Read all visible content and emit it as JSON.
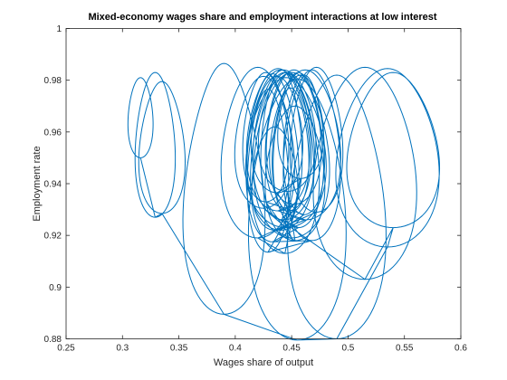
{
  "chart_data": {
    "type": "line",
    "title": "Mixed-economy wages share and employment interactions at low interest",
    "xlabel": "Wages share of output",
    "ylabel": "Employment rate",
    "xlim": [
      0.25,
      0.6
    ],
    "ylim": [
      0.88,
      1.0
    ],
    "xticks": [
      "0.25",
      "0.3",
      "0.35",
      "0.4",
      "0.45",
      "0.5",
      "0.55",
      "0.6"
    ],
    "yticks": [
      "0.88",
      "0.9",
      "0.92",
      "0.94",
      "0.96",
      "0.98",
      "1"
    ],
    "grid": false,
    "line_color": "#0072BD",
    "series": [
      {
        "orbits": [
          {
            "cx": 0.316,
            "cy": 0.9655,
            "w": 0.022,
            "h": 0.031,
            "d": 0.17
          },
          {
            "cx": 0.329,
            "cy": 0.955,
            "w": 0.035,
            "h": 0.056,
            "d": 0.2
          },
          {
            "cx": 0.335,
            "cy": 0.954,
            "w": 0.04,
            "h": 0.051,
            "d": 0.25
          },
          {
            "cx": 0.39,
            "cy": 0.938,
            "w": 0.07,
            "h": 0.097,
            "d": 0.3
          },
          {
            "cx": 0.455,
            "cy": 0.93,
            "w": 0.085,
            "h": 0.101,
            "d": 0.2
          },
          {
            "cx": 0.49,
            "cy": 0.931,
            "w": 0.085,
            "h": 0.102,
            "d": 0.25
          },
          {
            "cx": 0.535,
            "cy": 0.95,
            "w": 0.09,
            "h": 0.069,
            "d": 0.2
          },
          {
            "cx": 0.54,
            "cy": 0.953,
            "w": 0.08,
            "h": 0.06,
            "d": 0.25
          },
          {
            "cx": 0.515,
            "cy": 0.944,
            "w": 0.09,
            "h": 0.082,
            "d": 0.2
          },
          {
            "cx": 0.425,
            "cy": 0.956,
            "w": 0.05,
            "h": 0.051,
            "d": 0.2
          },
          {
            "cx": 0.445,
            "cy": 0.952,
            "w": 0.07,
            "h": 0.058,
            "d": 0.2
          },
          {
            "cx": 0.462,
            "cy": 0.955,
            "w": 0.062,
            "h": 0.058,
            "d": 0.2
          },
          {
            "cx": 0.438,
            "cy": 0.957,
            "w": 0.055,
            "h": 0.055,
            "d": 0.2
          },
          {
            "cx": 0.452,
            "cy": 0.958,
            "w": 0.048,
            "h": 0.052,
            "d": 0.2
          },
          {
            "cx": 0.447,
            "cy": 0.956,
            "w": 0.04,
            "h": 0.053,
            "d": 0.2
          },
          {
            "cx": 0.441,
            "cy": 0.955,
            "w": 0.036,
            "h": 0.058,
            "d": 0.2
          },
          {
            "cx": 0.456,
            "cy": 0.953,
            "w": 0.044,
            "h": 0.06,
            "d": 0.2
          },
          {
            "cx": 0.433,
            "cy": 0.95,
            "w": 0.046,
            "h": 0.065,
            "d": 0.2
          },
          {
            "cx": 0.468,
            "cy": 0.951,
            "w": 0.05,
            "h": 0.066,
            "d": 0.2
          },
          {
            "cx": 0.429,
            "cy": 0.945,
            "w": 0.036,
            "h": 0.063,
            "d": 0.2
          },
          {
            "cx": 0.449,
            "cy": 0.953,
            "w": 0.032,
            "h": 0.048,
            "d": 0.2
          },
          {
            "cx": 0.437,
            "cy": 0.959,
            "w": 0.045,
            "h": 0.045,
            "d": 0.2
          },
          {
            "cx": 0.458,
            "cy": 0.962,
            "w": 0.04,
            "h": 0.04,
            "d": 0.2
          },
          {
            "cx": 0.444,
            "cy": 0.948,
            "w": 0.06,
            "h": 0.07,
            "d": 0.2
          },
          {
            "cx": 0.42,
            "cy": 0.952,
            "w": 0.064,
            "h": 0.066,
            "d": 0.2
          },
          {
            "cx": 0.472,
            "cy": 0.957,
            "w": 0.046,
            "h": 0.056,
            "d": 0.2
          },
          {
            "cx": 0.435,
            "cy": 0.942,
            "w": 0.04,
            "h": 0.04,
            "d": 0.2
          },
          {
            "cx": 0.453,
            "cy": 0.944,
            "w": 0.052,
            "h": 0.052,
            "d": 0.2
          },
          {
            "cx": 0.446,
            "cy": 0.96,
            "w": 0.05,
            "h": 0.046,
            "d": 0.2
          },
          {
            "cx": 0.44,
            "cy": 0.953,
            "w": 0.058,
            "h": 0.062,
            "d": 0.2
          },
          {
            "cx": 0.461,
            "cy": 0.955,
            "w": 0.036,
            "h": 0.054,
            "d": 0.2
          },
          {
            "cx": 0.427,
            "cy": 0.958,
            "w": 0.04,
            "h": 0.05,
            "d": 0.2
          },
          {
            "cx": 0.45,
            "cy": 0.951,
            "w": 0.066,
            "h": 0.064,
            "d": 0.2
          },
          {
            "cx": 0.443,
            "cy": 0.955,
            "w": 0.054,
            "h": 0.058,
            "d": 0.2
          }
        ]
      }
    ]
  }
}
